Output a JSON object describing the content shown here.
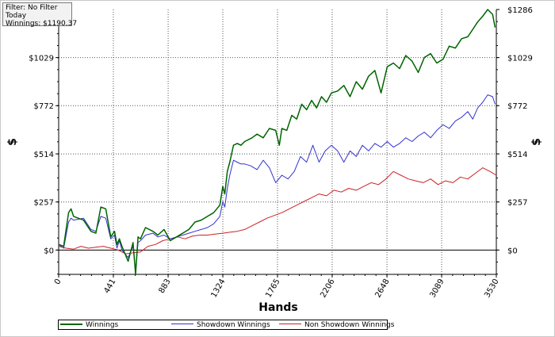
{
  "filter_box": {
    "line1": "Filter: No Filter",
    "line2": "Today",
    "line3": "Winnings: $1190.37"
  },
  "chart_data": {
    "type": "line",
    "xlabel": "Hands",
    "ylabel": "$",
    "xlim": [
      0,
      3530
    ],
    "ylim": [
      -130,
      1286
    ],
    "x_ticks": [
      0,
      441,
      883,
      1324,
      1765,
      2206,
      2648,
      3089,
      3530
    ],
    "x_tick_labels": [
      "0",
      "441",
      "883",
      "1324",
      "1765",
      "2206",
      "2648",
      "3089",
      "3530"
    ],
    "y_ticks": [
      0,
      257,
      514,
      772,
      1029,
      1286
    ],
    "y_tick_labels": [
      "$0",
      "$257",
      "$514",
      "$772",
      "$1029",
      "$1286"
    ],
    "grid": true,
    "legend_placement": "bottom",
    "series": [
      {
        "name": "Winnings",
        "color": "#006400",
        "x": [
          0,
          40,
          80,
          100,
          120,
          200,
          260,
          300,
          340,
          380,
          420,
          450,
          470,
          490,
          510,
          560,
          600,
          620,
          640,
          660,
          700,
          760,
          800,
          850,
          900,
          950,
          1000,
          1050,
          1100,
          1150,
          1200,
          1250,
          1300,
          1324,
          1340,
          1360,
          1380,
          1410,
          1440,
          1470,
          1500,
          1560,
          1600,
          1650,
          1700,
          1750,
          1780,
          1800,
          1840,
          1880,
          1920,
          1960,
          2000,
          2040,
          2080,
          2120,
          2160,
          2200,
          2250,
          2300,
          2350,
          2400,
          2450,
          2500,
          2550,
          2600,
          2650,
          2700,
          2750,
          2800,
          2850,
          2900,
          2950,
          3000,
          3050,
          3100,
          3150,
          3200,
          3250,
          3300,
          3340,
          3380,
          3420,
          3460,
          3500,
          3520
        ],
        "values": [
          30,
          20,
          200,
          220,
          180,
          160,
          100,
          90,
          230,
          220,
          70,
          100,
          30,
          60,
          20,
          -60,
          40,
          -130,
          70,
          60,
          120,
          100,
          80,
          110,
          50,
          70,
          90,
          110,
          150,
          160,
          180,
          200,
          240,
          340,
          300,
          420,
          470,
          560,
          570,
          560,
          580,
          600,
          620,
          600,
          650,
          640,
          560,
          650,
          640,
          720,
          700,
          780,
          750,
          800,
          760,
          820,
          790,
          840,
          850,
          880,
          820,
          900,
          860,
          930,
          960,
          840,
          980,
          1000,
          970,
          1040,
          1010,
          950,
          1030,
          1050,
          1000,
          1020,
          1090,
          1080,
          1130,
          1140,
          1180,
          1220,
          1250,
          1286,
          1260,
          1190
        ]
      },
      {
        "name": "Showdown Winnings",
        "color": "#3333cc",
        "x": [
          0,
          40,
          80,
          100,
          120,
          200,
          260,
          300,
          340,
          380,
          420,
          450,
          470,
          490,
          510,
          560,
          600,
          620,
          640,
          660,
          700,
          760,
          800,
          850,
          900,
          950,
          1000,
          1050,
          1100,
          1150,
          1200,
          1250,
          1300,
          1324,
          1340,
          1360,
          1380,
          1410,
          1440,
          1470,
          1500,
          1550,
          1600,
          1650,
          1700,
          1750,
          1800,
          1850,
          1900,
          1950,
          2000,
          2050,
          2100,
          2150,
          2200,
          2250,
          2300,
          2350,
          2400,
          2450,
          2500,
          2550,
          2600,
          2650,
          2700,
          2750,
          2800,
          2850,
          2900,
          2950,
          3000,
          3050,
          3100,
          3150,
          3200,
          3250,
          3300,
          3340,
          3380,
          3420,
          3460,
          3500,
          3520
        ],
        "values": [
          30,
          10,
          150,
          170,
          160,
          170,
          110,
          100,
          180,
          170,
          60,
          80,
          10,
          50,
          0,
          -40,
          20,
          -110,
          40,
          50,
          80,
          90,
          70,
          80,
          60,
          70,
          80,
          90,
          100,
          110,
          120,
          140,
          180,
          260,
          230,
          330,
          400,
          480,
          470,
          460,
          460,
          450,
          430,
          480,
          440,
          360,
          400,
          380,
          420,
          500,
          470,
          560,
          470,
          530,
          560,
          530,
          470,
          530,
          500,
          560,
          530,
          570,
          550,
          580,
          550,
          570,
          600,
          580,
          610,
          630,
          600,
          640,
          670,
          650,
          690,
          710,
          740,
          700,
          760,
          790,
          830,
          820,
          780
        ]
      },
      {
        "name": "Non Showdown Winnings",
        "color": "#cc2222",
        "x": [
          0,
          60,
          120,
          180,
          240,
          300,
          360,
          420,
          480,
          540,
          600,
          660,
          720,
          780,
          840,
          900,
          960,
          1020,
          1080,
          1140,
          1200,
          1260,
          1324,
          1380,
          1440,
          1500,
          1560,
          1620,
          1680,
          1740,
          1800,
          1860,
          1920,
          1980,
          2040,
          2100,
          2160,
          2220,
          2280,
          2340,
          2400,
          2460,
          2520,
          2580,
          2640,
          2700,
          2760,
          2820,
          2880,
          2940,
          3000,
          3060,
          3120,
          3180,
          3240,
          3300,
          3360,
          3420,
          3480,
          3530
        ],
        "values": [
          20,
          10,
          5,
          20,
          10,
          15,
          20,
          10,
          0,
          -20,
          -15,
          -10,
          20,
          30,
          50,
          60,
          70,
          60,
          75,
          80,
          80,
          85,
          90,
          95,
          100,
          110,
          130,
          150,
          170,
          185,
          200,
          220,
          240,
          260,
          280,
          300,
          290,
          320,
          310,
          330,
          320,
          340,
          360,
          350,
          380,
          420,
          400,
          380,
          370,
          360,
          380,
          350,
          370,
          360,
          390,
          380,
          410,
          440,
          420,
          400
        ]
      }
    ]
  }
}
